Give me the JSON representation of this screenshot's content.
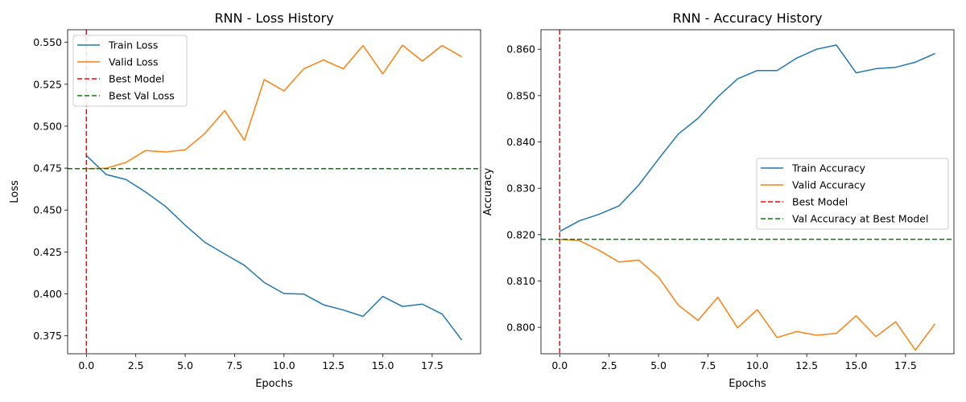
{
  "chart_data": [
    {
      "type": "line",
      "title": "RNN - Loss History",
      "xlabel": "Epochs",
      "ylabel": "Loss",
      "xlim": [
        -0.95,
        19.95
      ],
      "ylim": [
        0.3643,
        0.5575
      ],
      "xticks": [
        0,
        2.5,
        5,
        7.5,
        10,
        12.5,
        15,
        17.5
      ],
      "xtick_labels": [
        "0.0",
        "2.5",
        "5.0",
        "7.5",
        "10.0",
        "12.5",
        "15.0",
        "17.5"
      ],
      "yticks": [
        0.375,
        0.4,
        0.425,
        0.45,
        0.475,
        0.5,
        0.525,
        0.55
      ],
      "ytick_labels": [
        "0.375",
        "0.400",
        "0.425",
        "0.450",
        "0.475",
        "0.500",
        "0.525",
        "0.550"
      ],
      "x": [
        0,
        1,
        2,
        3,
        4,
        5,
        6,
        7,
        8,
        9,
        10,
        11,
        12,
        13,
        14,
        15,
        16,
        17,
        18,
        19
      ],
      "series": [
        {
          "name": "Train Loss",
          "color": "#1f77b4",
          "values": [
            0.4825,
            0.4712,
            0.4682,
            0.4607,
            0.4522,
            0.441,
            0.4307,
            0.4238,
            0.417,
            0.4068,
            0.4002,
            0.3999,
            0.3935,
            0.3904,
            0.3866,
            0.3985,
            0.3925,
            0.3939,
            0.388,
            0.3725
          ]
        },
        {
          "name": "Valid Loss",
          "color": "#ff7f0e",
          "values": [
            0.4747,
            0.4749,
            0.4784,
            0.4855,
            0.4846,
            0.4859,
            0.4957,
            0.5093,
            0.4916,
            0.5278,
            0.521,
            0.5342,
            0.5395,
            0.5342,
            0.5481,
            0.5312,
            0.5483,
            0.5388,
            0.5481,
            0.5414
          ]
        }
      ],
      "reference_lines": [
        {
          "name": "Best Model",
          "orientation": "vertical",
          "value": 0,
          "color": "#ff0000",
          "style": "dashed"
        },
        {
          "name": "Best Val Loss",
          "orientation": "horizontal",
          "value": 0.4747,
          "color": "#008000",
          "style": "dashed"
        }
      ],
      "legend_position": "upper-left",
      "grid": false
    },
    {
      "type": "line",
      "title": "RNN - Accuracy History",
      "xlabel": "Epochs",
      "ylabel": "Accuracy",
      "xlim": [
        -0.95,
        19.95
      ],
      "ylim": [
        0.7943,
        0.8642
      ],
      "xticks": [
        0,
        2.5,
        5,
        7.5,
        10,
        12.5,
        15,
        17.5
      ],
      "xtick_labels": [
        "0.0",
        "2.5",
        "5.0",
        "7.5",
        "10.0",
        "12.5",
        "15.0",
        "17.5"
      ],
      "yticks": [
        0.8,
        0.81,
        0.82,
        0.83,
        0.84,
        0.85,
        0.86
      ],
      "ytick_labels": [
        "0.800",
        "0.810",
        "0.820",
        "0.830",
        "0.840",
        "0.850",
        "0.860"
      ],
      "x": [
        0,
        1,
        2,
        3,
        4,
        5,
        6,
        7,
        8,
        9,
        10,
        11,
        12,
        13,
        14,
        15,
        16,
        17,
        18,
        19
      ],
      "series": [
        {
          "name": "Train Accuracy",
          "color": "#1f77b4",
          "values": [
            0.8207,
            0.823,
            0.8244,
            0.8262,
            0.8307,
            0.8363,
            0.8417,
            0.8451,
            0.8497,
            0.8536,
            0.8554,
            0.8554,
            0.8581,
            0.86,
            0.8609,
            0.8549,
            0.8558,
            0.8561,
            0.8572,
            0.8591
          ]
        },
        {
          "name": "Valid Accuracy",
          "color": "#ff7f0e",
          "values": [
            0.819,
            0.8187,
            0.8166,
            0.8141,
            0.8145,
            0.8108,
            0.8048,
            0.8015,
            0.8065,
            0.7999,
            0.8038,
            0.7978,
            0.7991,
            0.7983,
            0.7987,
            0.8025,
            0.798,
            0.8012,
            0.7951,
            0.8008
          ]
        }
      ],
      "reference_lines": [
        {
          "name": "Best Model",
          "orientation": "vertical",
          "value": 0,
          "color": "#ff0000",
          "style": "dashed"
        },
        {
          "name": "Val Accuracy at Best Model",
          "orientation": "horizontal",
          "value": 0.819,
          "color": "#008000",
          "style": "dashed"
        }
      ],
      "legend_position": "center-right",
      "grid": false
    }
  ]
}
